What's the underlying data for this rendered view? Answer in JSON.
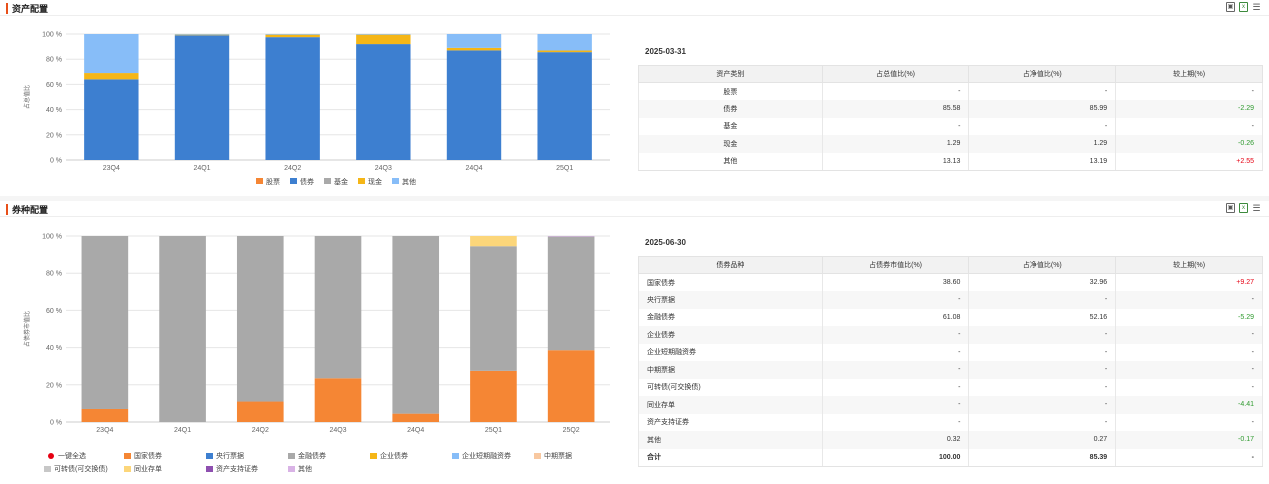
{
  "asset_section": {
    "title": "资产配置",
    "date": "2025-03-31",
    "columns": [
      "资产类别",
      "占总值比(%)",
      "占净值比(%)",
      "较上期(%)"
    ],
    "rows": [
      {
        "name": "股票",
        "total": "-",
        "net": "-",
        "change": "-",
        "dir": ""
      },
      {
        "name": "债券",
        "total": "85.58",
        "net": "85.99",
        "change": "-2.29",
        "dir": "down"
      },
      {
        "name": "基金",
        "total": "-",
        "net": "-",
        "change": "-",
        "dir": ""
      },
      {
        "name": "现金",
        "total": "1.29",
        "net": "1.29",
        "change": "-0.26",
        "dir": "down"
      },
      {
        "name": "其他",
        "total": "13.13",
        "net": "13.19",
        "change": "+2.55",
        "dir": "up"
      }
    ]
  },
  "bond_section": {
    "title": "券种配置",
    "date": "2025-06-30",
    "columns": [
      "债券品种",
      "占债券市值比(%)",
      "占净值比(%)",
      "较上期(%)"
    ],
    "rows": [
      {
        "name": "国家债券",
        "mv": "38.60",
        "net": "32.96",
        "change": "+9.27",
        "dir": "up"
      },
      {
        "name": "央行票据",
        "mv": "-",
        "net": "-",
        "change": "-",
        "dir": ""
      },
      {
        "name": "金融债券",
        "mv": "61.08",
        "net": "52.16",
        "change": "-5.29",
        "dir": "down"
      },
      {
        "name": "企业债券",
        "mv": "-",
        "net": "-",
        "change": "-",
        "dir": ""
      },
      {
        "name": "企业短期融资券",
        "mv": "-",
        "net": "-",
        "change": "-",
        "dir": ""
      },
      {
        "name": "中期票据",
        "mv": "-",
        "net": "-",
        "change": "-",
        "dir": ""
      },
      {
        "name": "可转债(可交换债)",
        "mv": "-",
        "net": "-",
        "change": "-",
        "dir": ""
      },
      {
        "name": "同业存单",
        "mv": "-",
        "net": "-",
        "change": "-4.41",
        "dir": "down"
      },
      {
        "name": "资产支持证券",
        "mv": "-",
        "net": "-",
        "change": "-",
        "dir": ""
      },
      {
        "name": "其他",
        "mv": "0.32",
        "net": "0.27",
        "change": "-0.17",
        "dir": "down"
      }
    ],
    "total_row": {
      "name": "合计",
      "mv": "100.00",
      "net": "85.39",
      "change": "-"
    },
    "select_all_label": "一键全选"
  },
  "chart_data": [
    {
      "type": "bar",
      "stacked": true,
      "title": "",
      "ylabel": "占总值比",
      "ylim": [
        0,
        100
      ],
      "yticks": [
        "0 %",
        "20 %",
        "40 %",
        "60 %",
        "80 %",
        "100 %"
      ],
      "categories": [
        "23Q4",
        "24Q1",
        "24Q2",
        "24Q3",
        "24Q4",
        "25Q1"
      ],
      "legend_position": "bottom",
      "series": [
        {
          "name": "股票",
          "color": "#f58634",
          "values": [
            0,
            0,
            0,
            0,
            0,
            0
          ]
        },
        {
          "name": "债券",
          "color": "#3d7fd0",
          "values": [
            64,
            99,
            97.5,
            92,
            87,
            85.6
          ]
        },
        {
          "name": "基金",
          "color": "#a9a9a9",
          "values": [
            0,
            0,
            0,
            0,
            0,
            0
          ]
        },
        {
          "name": "现金",
          "color": "#f5b617",
          "values": [
            5,
            0.5,
            2,
            7.5,
            2,
            1.3
          ]
        },
        {
          "name": "其他",
          "color": "#87bdf8",
          "values": [
            31,
            0.5,
            0.5,
            0.5,
            11,
            13.1
          ]
        }
      ]
    },
    {
      "type": "bar",
      "stacked": true,
      "title": "",
      "ylabel": "占债券市值比",
      "ylim": [
        0,
        100
      ],
      "yticks": [
        "0 %",
        "20 %",
        "40 %",
        "60 %",
        "80 %",
        "100 %"
      ],
      "categories": [
        "23Q4",
        "24Q1",
        "24Q2",
        "24Q3",
        "24Q4",
        "25Q1",
        "25Q2"
      ],
      "legend_position": "bottom",
      "series": [
        {
          "name": "国家债券",
          "color": "#f58634",
          "values": [
            7,
            0,
            11,
            23.5,
            4.5,
            27.5,
            38.6
          ]
        },
        {
          "name": "央行票据",
          "color": "#3d7fd0",
          "values": [
            0,
            0,
            0,
            0,
            0,
            0,
            0
          ]
        },
        {
          "name": "金融债券",
          "color": "#a9a9a9",
          "values": [
            93,
            100,
            89,
            76.5,
            95.5,
            67,
            61.1
          ]
        },
        {
          "name": "企业债券",
          "color": "#f5b617",
          "values": [
            0,
            0,
            0,
            0,
            0,
            0,
            0
          ]
        },
        {
          "name": "企业短期融资券",
          "color": "#87bdf8",
          "values": [
            0,
            0,
            0,
            0,
            0,
            0,
            0
          ]
        },
        {
          "name": "中期票据",
          "color": "#f8c8a0",
          "values": [
            0,
            0,
            0,
            0,
            0,
            0,
            0
          ]
        },
        {
          "name": "可转债(可交换债)",
          "color": "#c7c7c7",
          "values": [
            0,
            0,
            0,
            0,
            0,
            0,
            0
          ]
        },
        {
          "name": "同业存单",
          "color": "#fcd67a",
          "values": [
            0,
            0,
            0,
            0,
            0,
            5.5,
            0
          ]
        },
        {
          "name": "资产支持证券",
          "color": "#8e4fb0",
          "values": [
            0,
            0,
            0,
            0,
            0,
            0,
            0
          ]
        },
        {
          "name": "其他",
          "color": "#d9b3e6",
          "values": [
            0,
            0,
            0,
            0,
            0,
            0,
            0.3
          ]
        }
      ]
    }
  ]
}
